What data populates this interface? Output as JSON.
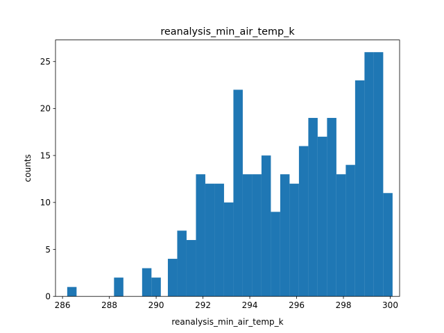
{
  "chart_data": {
    "type": "bar",
    "title": "reanalysis_min_air_temp_k",
    "xlabel": "reanalysis_min_air_temp_k",
    "ylabel": "counts",
    "xlim": [
      285.7,
      300.4
    ],
    "ylim": [
      0,
      27.3
    ],
    "xticks": [
      286,
      288,
      290,
      292,
      294,
      296,
      298,
      300
    ],
    "yticks": [
      0,
      5,
      10,
      15,
      20,
      25
    ],
    "bar_color": "#1f77b4",
    "grid": false,
    "bins": [
      {
        "x0": 286.2,
        "x1": 286.6,
        "count": 1
      },
      {
        "x0": 288.2,
        "x1": 288.6,
        "count": 2
      },
      {
        "x0": 289.4,
        "x1": 289.8,
        "count": 3
      },
      {
        "x0": 289.8,
        "x1": 290.2,
        "count": 2
      },
      {
        "x0": 290.5,
        "x1": 290.9,
        "count": 4
      },
      {
        "x0": 290.9,
        "x1": 291.3,
        "count": 7
      },
      {
        "x0": 291.3,
        "x1": 291.7,
        "count": 6
      },
      {
        "x0": 291.7,
        "x1": 292.1,
        "count": 13
      },
      {
        "x0": 292.1,
        "x1": 292.5,
        "count": 12
      },
      {
        "x0": 292.5,
        "x1": 292.9,
        "count": 12
      },
      {
        "x0": 292.9,
        "x1": 293.3,
        "count": 10
      },
      {
        "x0": 293.3,
        "x1": 293.7,
        "count": 22
      },
      {
        "x0": 293.7,
        "x1": 294.1,
        "count": 13
      },
      {
        "x0": 294.1,
        "x1": 294.5,
        "count": 13
      },
      {
        "x0": 294.5,
        "x1": 294.9,
        "count": 15
      },
      {
        "x0": 294.9,
        "x1": 295.3,
        "count": 9
      },
      {
        "x0": 295.3,
        "x1": 295.7,
        "count": 13
      },
      {
        "x0": 295.7,
        "x1": 296.1,
        "count": 12
      },
      {
        "x0": 296.1,
        "x1": 296.5,
        "count": 16
      },
      {
        "x0": 296.5,
        "x1": 296.9,
        "count": 19
      },
      {
        "x0": 296.9,
        "x1": 297.3,
        "count": 17
      },
      {
        "x0": 297.3,
        "x1": 297.7,
        "count": 19
      },
      {
        "x0": 297.7,
        "x1": 298.1,
        "count": 13
      },
      {
        "x0": 298.1,
        "x1": 298.5,
        "count": 14
      },
      {
        "x0": 298.5,
        "x1": 298.9,
        "count": 23
      },
      {
        "x0": 298.9,
        "x1": 299.3,
        "count": 26
      },
      {
        "x0": 299.3,
        "x1": 299.7,
        "count": 26
      },
      {
        "x0": 299.7,
        "x1": 300.1,
        "count": 11
      }
    ]
  }
}
